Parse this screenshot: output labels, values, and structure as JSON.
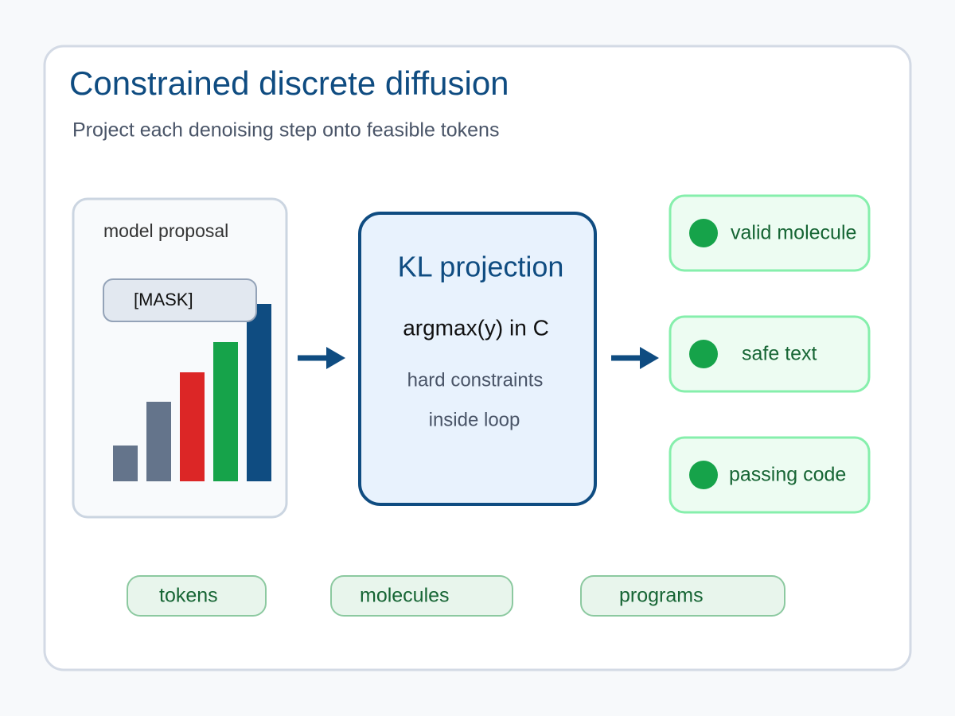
{
  "header": {
    "title": "Constrained discrete diffusion",
    "subtitle": "Project each denoising step onto feasible tokens"
  },
  "proposal": {
    "label": "model proposal",
    "token": "[MASK]"
  },
  "projection": {
    "title": "KL projection",
    "formula": "argmax(y) in C",
    "notes": [
      "hard constraints",
      "inside loop"
    ]
  },
  "outputs": [
    "valid molecule",
    "safe text",
    "passing code"
  ],
  "domains": [
    "tokens",
    "molecules",
    "programs"
  ]
}
